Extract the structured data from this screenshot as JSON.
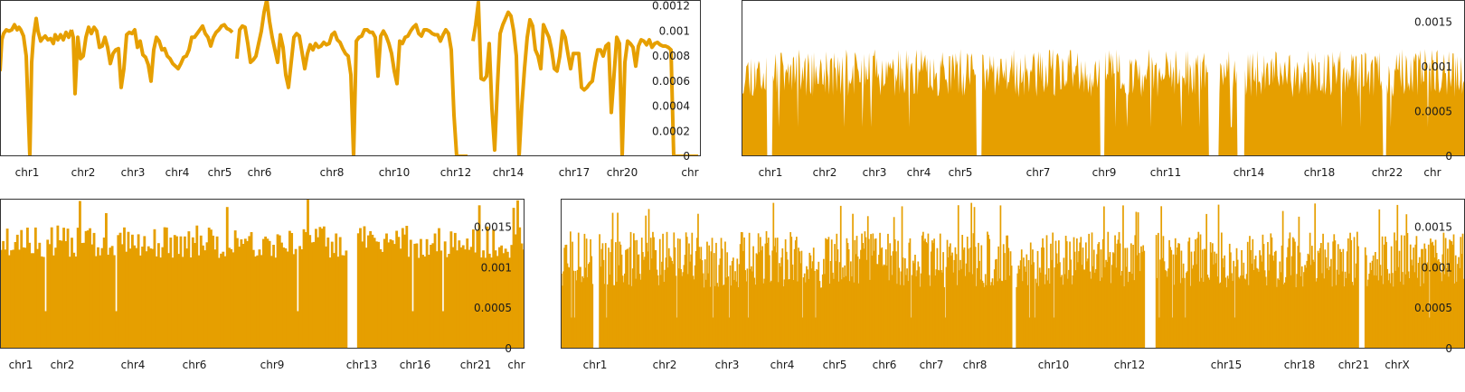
{
  "colors": {
    "series": "#E69F00",
    "axis": "#333333",
    "text": "#1a1a1a"
  },
  "chart_data": [
    {
      "type": "line",
      "panel": "top-left",
      "title": "",
      "xlabel": "",
      "ylabel": "",
      "ylim": [
        0,
        0.0012
      ],
      "grid": false,
      "legend": "none",
      "y_ticks": [
        "0",
        "0.0002",
        "0.0004",
        "0.0006",
        "0.0008",
        "0.001",
        "0.0012"
      ],
      "x_tick_labels": [
        "chr1",
        "chr2",
        "chr3",
        "chr4",
        "chr5",
        "chr6",
        "chr8",
        "chr10",
        "chr12",
        "chr14",
        "chr17",
        "chr20",
        "chr"
      ],
      "x_tick_positions": [
        30,
        92,
        147,
        196,
        243,
        287,
        367,
        436,
        504,
        562,
        635,
        688,
        763
      ],
      "series": [
        {
          "segments": [
            {
              "x": [
                0,
                2,
                4,
                7,
                10,
                13,
                16,
                19,
                21,
                23,
                26,
                29,
                31,
                33,
                35,
                37,
                40,
                42,
                45,
                47,
                50,
                53,
                56,
                59,
                61,
                64,
                67,
                70,
                73,
                76,
                79
              ],
              "y": [
                0.00068,
                0.00093,
                0.00098,
                0.00101,
                0.001,
                0.00101,
                0.00105,
                0.00101,
                0.00103,
                0.00101,
                0.00096,
                0.0008,
                0.0004,
                0.0,
                0.00075,
                0.00095,
                0.0011,
                0.001,
                0.00092,
                0.00094,
                0.00096,
                0.00093,
                0.00094,
                0.0009,
                0.00097,
                0.00093,
                0.00097,
                0.00093,
                0.00099,
                0.00095,
                0.00101
              ]
            },
            {
              "x": [
                79,
                81,
                83,
                86,
                89,
                92,
                95,
                98,
                101,
                104,
                107,
                110,
                113,
                116,
                119,
                122,
                125,
                128,
                131,
                134,
                137,
                140,
                143,
                146,
                149,
                152,
                155,
                158,
                161,
                164,
                167,
                170,
                173,
                176,
                179,
                182,
                185,
                188,
                191,
                194,
                197,
                200,
                203,
                206,
                209,
                212,
                215,
                218,
                221,
                224,
                227,
                230,
                233,
                236,
                239,
                242,
                245,
                248,
                251,
                254,
                257
              ],
              "y": [
                0.00101,
                0.00095,
                0.0005,
                0.00095,
                0.00078,
                0.0008,
                0.00095,
                0.00103,
                0.00098,
                0.00103,
                0.001,
                0.00087,
                0.00088,
                0.00095,
                0.00087,
                0.00074,
                0.00082,
                0.00085,
                0.00086,
                0.00055,
                0.0007,
                0.00097,
                0.00099,
                0.00098,
                0.00101,
                0.00087,
                0.00092,
                0.00081,
                0.00079,
                0.00073,
                0.0006,
                0.00085,
                0.00095,
                0.00092,
                0.00085,
                0.00086,
                0.0008,
                0.00078,
                0.00074,
                0.00072,
                0.0007,
                0.00074,
                0.00079,
                0.0008,
                0.00085,
                0.00095,
                0.00095,
                0.00098,
                0.00101,
                0.00104,
                0.00098,
                0.00095,
                0.00088,
                0.00095,
                0.00099,
                0.00101,
                0.00104,
                0.00105,
                0.00102,
                0.00101,
                0.00099
              ]
            },
            {
              "x": [
                262,
                265,
                268,
                271,
                274,
                277,
                280,
                283,
                286,
                289,
                292,
                295,
                298,
                301,
                304,
                307,
                310,
                313,
                316,
                319,
                322,
                325,
                328,
                331,
                334,
                337,
                340,
                343,
                346,
                349,
                352,
                355,
                358,
                361,
                364,
                367,
                370,
                373,
                376,
                379,
                382,
                385,
                388,
                391,
                394,
                397,
                400,
                403,
                406,
                409,
                412,
                415,
                418,
                421,
                424,
                427,
                430,
                433,
                436,
                439,
                442,
                445,
                448,
                451,
                454,
                457,
                460,
                463,
                466,
                469,
                472,
                475,
                478,
                481,
                484,
                487,
                490,
                493,
                496,
                499,
                502,
                505,
                508,
                511,
                514,
                517
              ],
              "y": [
                0.00078,
                0.00101,
                0.00104,
                0.00103,
                0.0009,
                0.00075,
                0.00077,
                0.0008,
                0.0009,
                0.001,
                0.00115,
                0.00125,
                0.00108,
                0.00095,
                0.00085,
                0.00075,
                0.00097,
                0.00087,
                0.00065,
                0.00055,
                0.00075,
                0.00095,
                0.00098,
                0.00096,
                0.00083,
                0.0007,
                0.00082,
                0.00089,
                0.00085,
                0.0009,
                0.00087,
                0.00088,
                0.00091,
                0.00089,
                0.0009,
                0.00097,
                0.00099,
                0.00093,
                0.00091,
                0.00086,
                0.00082,
                0.0008,
                0.00065,
                0.0,
                0.00092,
                0.00095,
                0.00096,
                0.00101,
                0.00101,
                0.00099,
                0.00099,
                0.00095,
                0.00064,
                0.00096,
                0.001,
                0.00096,
                0.0009,
                0.00082,
                0.00068,
                0.00058,
                0.00092,
                0.0009,
                0.00095,
                0.00096,
                0.001,
                0.00103,
                0.00105,
                0.00098,
                0.00096,
                0.00101,
                0.00101,
                0.001,
                0.00098,
                0.00097,
                0.00097,
                0.00092,
                0.00097,
                0.00101,
                0.00098,
                0.00085,
                0.00033,
                0.0,
                0,
                0,
                0,
                0
              ]
            },
            {
              "x": [
                523,
                526,
                529,
                532,
                535,
                538,
                541,
                544,
                547,
                550,
                553,
                556,
                559,
                562,
                565,
                568,
                571,
                574,
                577,
                580,
                583,
                586,
                589,
                592,
                595,
                598,
                601,
                604,
                607,
                610,
                613,
                616,
                619,
                622,
                625,
                628,
                631,
                634,
                637,
                640,
                643,
                646,
                649,
                652,
                655,
                658,
                661,
                664,
                667,
                670,
                673,
                676,
                679,
                682,
                685,
                688,
                691,
                694,
                697,
                700,
                703,
                706,
                709,
                712,
                715,
                718,
                721,
                724,
                727,
                730,
                733,
                736,
                739,
                742,
                745,
                748,
                751,
                754,
                757,
                760,
                763,
                766,
                769,
                772
              ],
              "y": [
                0.00092,
                0.00105,
                0.00123,
                0.00062,
                0.00061,
                0.00064,
                0.0009,
                0.00038,
                5e-05,
                0.00055,
                0.00098,
                0.00105,
                0.0011,
                0.00115,
                0.00112,
                0.001,
                0.0008,
                0.0,
                0.0004,
                0.0007,
                0.00095,
                0.00109,
                0.00104,
                0.00085,
                0.0008,
                0.0007,
                0.00105,
                0.001,
                0.00095,
                0.00085,
                0.0007,
                0.00068,
                0.0008,
                0.001,
                0.00095,
                0.00082,
                0.0007,
                0.00082,
                0.00082,
                0.00082,
                0.00055,
                0.00053,
                0.00055,
                0.00058,
                0.0006,
                0.00074,
                0.00085,
                0.00085,
                0.0008,
                0.00088,
                0.0009,
                0.00035,
                0.00065,
                0.00095,
                0.0009,
                0.0,
                0.00075,
                0.00092,
                0.0009,
                0.00087,
                0.00072,
                0.00088,
                0.00093,
                0.00092,
                0.00089,
                0.00093,
                0.00087,
                0.0009,
                0.00091,
                0.00089,
                0.00088,
                0.00088,
                0.00087,
                0.00085,
                0.0,
                0.0,
                0.0,
                0.0,
                0.0,
                0.0,
                0.0,
                0.0,
                0.0,
                0.0
              ]
            }
          ]
        }
      ]
    },
    {
      "type": "area",
      "panel": "top-right",
      "title": "",
      "ylim": [
        0,
        0.00175
      ],
      "grid": false,
      "legend": "none",
      "y_ticks": [
        "0",
        "0.0005",
        "0.001",
        "0.0015"
      ],
      "y_tick_values": [
        0,
        0.0005,
        0.001,
        0.0015
      ],
      "x_tick_labels": [
        "chr1",
        "chr2",
        "chr3",
        "chr4",
        "chr5",
        "chr7",
        "chr9",
        "chr11",
        "chr14",
        "chr18",
        "chr22",
        "chr"
      ],
      "x_tick_positions": [
        32,
        92,
        147,
        196,
        242,
        328,
        401,
        469,
        561,
        639,
        714,
        764
      ],
      "gaps": [
        [
          28,
          34
        ],
        [
          260,
          266
        ],
        [
          396,
          402
        ],
        [
          516,
          528
        ],
        [
          548,
          556
        ],
        [
          709,
          713
        ]
      ],
      "profile": {
        "n": 760,
        "seed": 11,
        "mean": 0.00093,
        "spread": 0.00027,
        "spike": 0.0012
      }
    },
    {
      "type": "bar",
      "panel": "bottom-left",
      "title": "",
      "ylim": [
        0,
        0.00185
      ],
      "grid": false,
      "legend": "none",
      "y_ticks": [
        "0",
        "0.0005",
        "0.001",
        "0.0015"
      ],
      "y_tick_values": [
        0,
        0.0005,
        0.001,
        0.0015
      ],
      "x_tick_labels": [
        "chr1",
        "chr2",
        "chr4",
        "chr6",
        "chr9",
        "chr13",
        "chr16",
        "chr21",
        "chr"
      ],
      "x_tick_positions": [
        23,
        69,
        147,
        215,
        301,
        400,
        459,
        526,
        571
      ],
      "gaps": [
        [
          383,
          393
        ]
      ],
      "profile": {
        "n": 260,
        "seed": 23,
        "mean": 0.00132,
        "spread": 0.0002,
        "spike": 0.00185
      }
    },
    {
      "type": "bar",
      "panel": "bottom-right",
      "title": "",
      "ylim": [
        0,
        0.00185
      ],
      "grid": false,
      "legend": "none",
      "y_ticks": [
        "0",
        "0.0005",
        "0.001",
        "0.0015"
      ],
      "y_tick_values": [
        0,
        0.0005,
        0.001,
        0.0015
      ],
      "x_tick_labels": [
        "chr1",
        "chr2",
        "chr3",
        "chr4",
        "chr5",
        "chr6",
        "chr7",
        "chr8",
        "chr10",
        "chr12",
        "chr15",
        "chr18",
        "chr21",
        "chrX"
      ],
      "x_tick_positions": [
        38,
        115,
        184,
        245,
        303,
        358,
        410,
        458,
        545,
        629,
        736,
        817,
        877,
        925
      ],
      "gaps": [
        [
          35,
          42
        ],
        [
          498,
          503
        ],
        [
          645,
          657
        ],
        [
          882,
          888
        ]
      ],
      "profile": {
        "n": 900,
        "seed": 37,
        "mean": 0.0011,
        "spread": 0.00035,
        "spike": 0.0018
      }
    }
  ]
}
